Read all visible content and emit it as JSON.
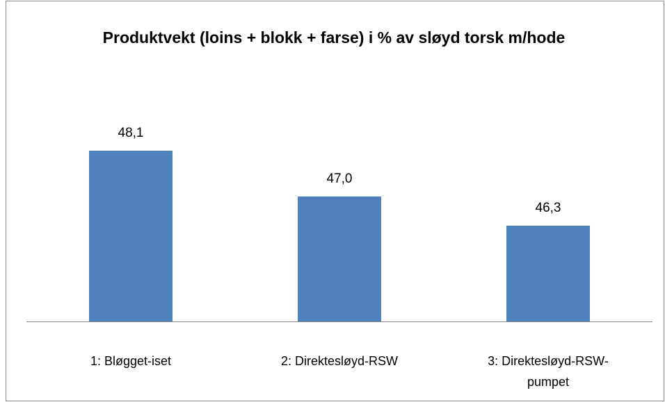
{
  "chart_data": {
    "type": "bar",
    "title": "Produktvekt (loins + blokk + farse) i % av sløyd torsk m/hode",
    "categories": [
      "1: Bløgget-iset",
      "2: Direktesløyd-RSW",
      "3: Direktesløyd-RSW-pumpet"
    ],
    "values": [
      48.1,
      47.0,
      46.3
    ],
    "value_labels": [
      "48,1",
      "47,0",
      "46,3"
    ],
    "color": "#4f81bd",
    "ylim": [
      44,
      50
    ]
  }
}
